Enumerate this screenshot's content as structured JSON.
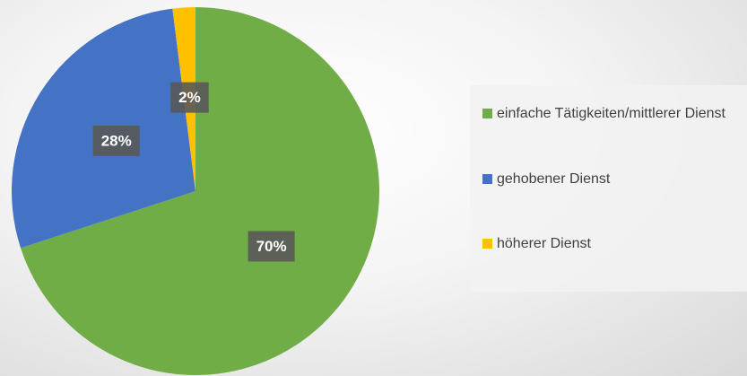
{
  "chart_data": {
    "type": "pie",
    "categories": [
      "einfache Tätigkeiten/mittlerer Dienst",
      "gehobener Dienst",
      "höherer Dienst"
    ],
    "values": [
      70,
      28,
      2
    ],
    "value_labels": [
      "70%",
      "28%",
      "2%"
    ],
    "colors": [
      "#70ad47",
      "#4472c4",
      "#ffc000"
    ],
    "legend": "right"
  }
}
